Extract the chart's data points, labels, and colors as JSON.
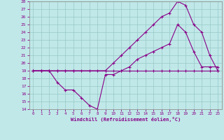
{
  "bg_color": "#c0e8e8",
  "grid_color": "#98c8c8",
  "line_color": "#880088",
  "xlabel": "Windchill (Refroidissement éolien,°C)",
  "xlim": [
    -0.5,
    23.5
  ],
  "ylim": [
    14,
    28
  ],
  "xticks": [
    0,
    1,
    2,
    3,
    4,
    5,
    6,
    7,
    8,
    9,
    10,
    11,
    12,
    13,
    14,
    15,
    16,
    17,
    18,
    19,
    20,
    21,
    22,
    23
  ],
  "yticks": [
    14,
    15,
    16,
    17,
    18,
    19,
    20,
    21,
    22,
    23,
    24,
    25,
    26,
    27,
    28
  ],
  "line1_x": [
    0,
    1,
    2,
    3,
    4,
    5,
    6,
    7,
    8,
    9,
    10,
    11,
    12,
    13,
    14,
    15,
    16,
    17,
    18,
    19,
    20,
    21,
    22,
    23
  ],
  "line1_y": [
    19,
    19,
    19,
    19,
    19,
    19,
    19,
    19,
    19,
    19,
    19,
    19,
    19,
    19,
    19,
    19,
    19,
    19,
    19,
    19,
    19,
    19,
    19,
    19
  ],
  "line2_x": [
    0,
    1,
    2,
    3,
    4,
    5,
    9,
    10,
    11,
    12,
    13,
    14,
    15,
    16,
    17,
    18,
    19,
    20,
    21,
    22,
    23
  ],
  "line2_y": [
    19,
    19,
    19,
    19,
    19,
    19,
    19,
    20,
    21,
    22,
    23,
    24,
    25,
    26,
    26.5,
    28,
    27.5,
    25,
    24,
    21,
    19
  ],
  "line3_x": [
    0,
    1,
    2,
    3,
    4,
    5,
    6,
    7,
    8,
    9,
    10,
    11,
    12,
    13,
    14,
    15,
    16,
    17,
    18,
    19,
    20,
    21,
    22,
    23
  ],
  "line3_y": [
    19,
    19,
    19,
    17.5,
    16.5,
    16.5,
    15.5,
    14.5,
    14,
    18.5,
    18.5,
    19,
    19.5,
    20.5,
    21,
    21.5,
    22,
    22.5,
    25,
    24,
    21.5,
    19.5,
    19.5,
    19.5
  ]
}
